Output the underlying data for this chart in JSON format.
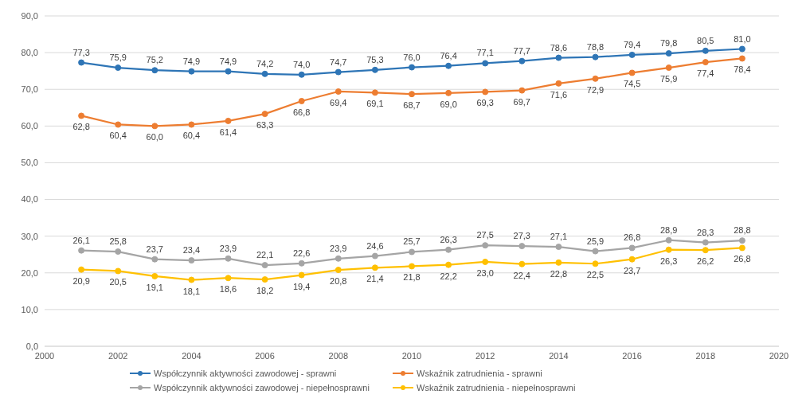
{
  "chart_data": {
    "type": "line",
    "x": [
      2001,
      2002,
      2003,
      2004,
      2005,
      2006,
      2007,
      2008,
      2009,
      2010,
      2011,
      2012,
      2013,
      2014,
      2015,
      2016,
      2017,
      2018,
      2019
    ],
    "series": [
      {
        "name": "Współczynnik aktywności zawodowej - sprawni",
        "color": "#2e75b6",
        "values": [
          77.3,
          75.9,
          75.2,
          74.9,
          74.9,
          74.2,
          74.0,
          74.7,
          75.3,
          76.0,
          76.4,
          77.1,
          77.7,
          78.6,
          78.8,
          79.4,
          79.8,
          80.5,
          81.0
        ],
        "value_labels": [
          "77,3",
          "75,9",
          "75,2",
          "74,9",
          "74,9",
          "74,2",
          "74,0",
          "74,7",
          "75,3",
          "76,0",
          "76,4",
          "77,1",
          "77,7",
          "78,6",
          "78,8",
          "79,4",
          "79,8",
          "80,5",
          "81,0"
        ]
      },
      {
        "name": "Wskaźnik zatrudnienia - sprawni",
        "color": "#ed7d31",
        "values": [
          62.8,
          60.4,
          60.0,
          60.4,
          61.4,
          63.3,
          66.8,
          69.4,
          69.1,
          68.7,
          69.0,
          69.3,
          69.7,
          71.6,
          72.9,
          74.5,
          75.9,
          77.4,
          78.4
        ],
        "value_labels": [
          "62,8",
          "60,4",
          "60,0",
          "60,4",
          "61,4",
          "63,3",
          "66,8",
          "69,4",
          "69,1",
          "68,7",
          "69,0",
          "69,3",
          "69,7",
          "71,6",
          "72,9",
          "74,5",
          "75,9",
          "77,4",
          "78,4"
        ]
      },
      {
        "name": "Współczynnik aktywności zawodowej - niepełnosprawni",
        "color": "#a5a5a5",
        "values": [
          26.1,
          25.8,
          23.7,
          23.4,
          23.9,
          22.1,
          22.6,
          23.9,
          24.6,
          25.7,
          26.3,
          27.5,
          27.3,
          27.1,
          25.9,
          26.8,
          28.9,
          28.3,
          28.8
        ],
        "value_labels": [
          "26,1",
          "25,8",
          "23,7",
          "23,4",
          "23,9",
          "22,1",
          "22,6",
          "23,9",
          "24,6",
          "25,7",
          "26,3",
          "27,5",
          "27,3",
          "27,1",
          "25,9",
          "26,8",
          "28,9",
          "28,3",
          "28,8"
        ]
      },
      {
        "name": "Wskaźnik zatrudnienia - niepełnosprawni",
        "color": "#ffc000",
        "values": [
          20.9,
          20.5,
          19.1,
          18.1,
          18.6,
          18.2,
          19.4,
          20.8,
          21.4,
          21.8,
          22.2,
          23.0,
          22.4,
          22.8,
          22.5,
          23.7,
          26.3,
          26.2,
          26.8
        ],
        "value_labels": [
          "20,9",
          "20,5",
          "19,1",
          "18,1",
          "18,6",
          "18,2",
          "19,4",
          "20,8",
          "21,4",
          "21,8",
          "22,2",
          "23,0",
          "22,4",
          "22,8",
          "22,5",
          "23,7",
          "26,3",
          "26,2",
          "26,8"
        ]
      }
    ],
    "xlim": [
      2000,
      2020
    ],
    "xticks": [
      2000,
      2002,
      2004,
      2006,
      2008,
      2010,
      2012,
      2014,
      2016,
      2018,
      2020
    ],
    "ylim": [
      0,
      90
    ],
    "yticks": [
      {
        "value": 0,
        "label": "0,0"
      },
      {
        "value": 10,
        "label": "10,0"
      },
      {
        "value": 20,
        "label": "20,0"
      },
      {
        "value": 30,
        "label": "30,0"
      },
      {
        "value": 40,
        "label": "40,0"
      },
      {
        "value": 50,
        "label": "50,0"
      },
      {
        "value": 60,
        "label": "60,0"
      },
      {
        "value": 70,
        "label": "70,0"
      },
      {
        "value": 80,
        "label": "80,0"
      },
      {
        "value": 90,
        "label": "90,0"
      }
    ],
    "grid": "y",
    "legend": "bottom",
    "marker": "circle",
    "line_style": "solid"
  }
}
